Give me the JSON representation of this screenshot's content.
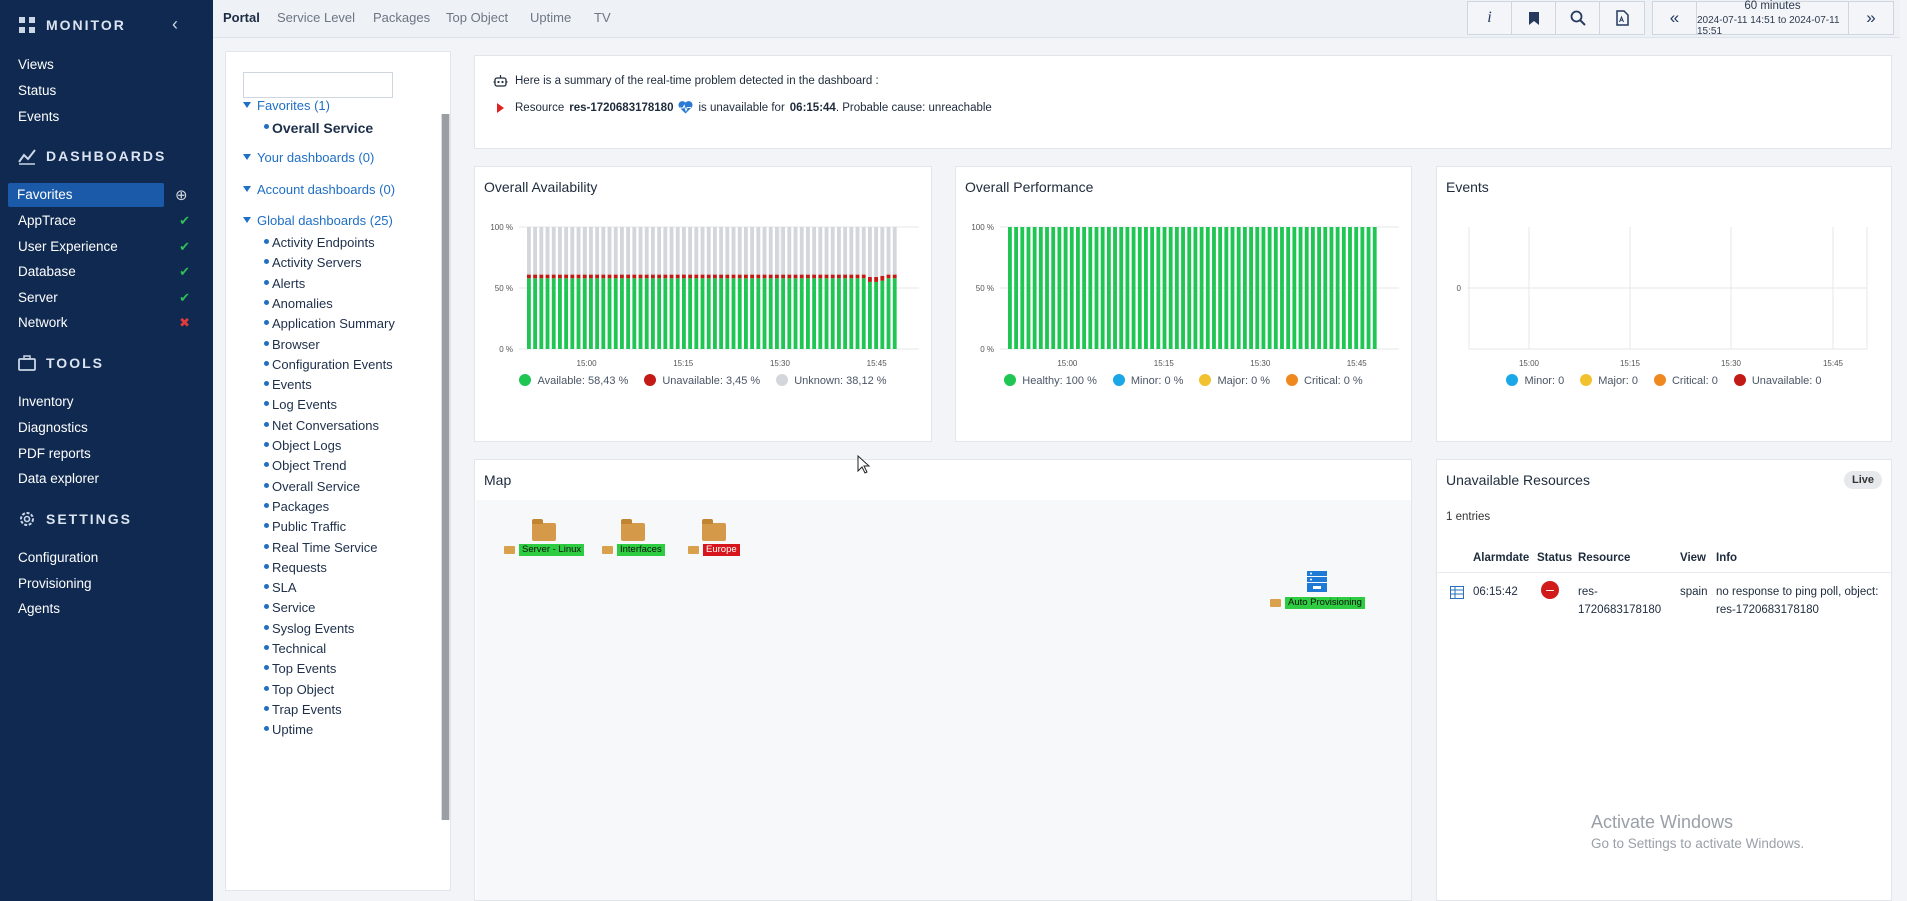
{
  "sidebar": {
    "monitor_title": "MONITOR",
    "monitor_items": [
      "Views",
      "Status",
      "Events"
    ],
    "dashboards_title": "DASHBOARDS",
    "dashboard_items": [
      {
        "label": "Favorites",
        "mark": "plus"
      },
      {
        "label": "AppTrace",
        "mark": "ok"
      },
      {
        "label": "User Experience",
        "mark": "ok"
      },
      {
        "label": "Database",
        "mark": "ok"
      },
      {
        "label": "Server",
        "mark": "ok"
      },
      {
        "label": "Network",
        "mark": "bad"
      }
    ],
    "tools_title": "TOOLS",
    "tools_items": [
      "Inventory",
      "Diagnostics",
      "PDF reports",
      "Data explorer"
    ],
    "settings_title": "SETTINGS",
    "settings_items": [
      "Configuration",
      "Provisioning",
      "Agents"
    ]
  },
  "topbar": {
    "tabs": [
      "Portal",
      "Service Level",
      "Packages",
      "Top Object",
      "Uptime",
      "TV"
    ],
    "active_tab": "Portal",
    "info_label": "i",
    "time_duration": "60 minutes",
    "time_range": "2024-07-11 14:51 to 2024-07-11 15:51"
  },
  "tree": {
    "search_placeholder": "",
    "groups": [
      {
        "label": "Favorites (1)",
        "items": [
          "Overall Service"
        ]
      },
      {
        "label": "Your dashboards (0)",
        "items": []
      },
      {
        "label": "Account dashboards (0)",
        "items": []
      },
      {
        "label": "Global dashboards (25)",
        "items": [
          "Activity Endpoints",
          "Activity Servers",
          "Alerts",
          "Anomalies",
          "Application Summary",
          "Browser",
          "Configuration Events",
          "Events",
          "Log Events",
          "Net Conversations",
          "Object Logs",
          "Object Trend",
          "Overall Service",
          "Packages",
          "Public Traffic",
          "Real Time Service",
          "Requests",
          "SLA",
          "Service",
          "Syslog Events",
          "Technical",
          "Top Events",
          "Top Object",
          "Trap Events",
          "Uptime"
        ]
      }
    ]
  },
  "summary": {
    "intro": "Here is a summary of the real-time problem detected in the dashboard :",
    "resource_prefix": "Resource",
    "resource": "res-1720683178180",
    "middle": "is unavailable for",
    "duration": "06:15:44",
    "cause": ". Probable cause: unreachable"
  },
  "availability": {
    "title": "Overall Availability",
    "legend": [
      "Available: 58,43 %",
      "Unavailable: 3,45 %",
      "Unknown: 38,12 %"
    ]
  },
  "performance": {
    "title": "Overall Performance",
    "legend": [
      "Healthy: 100 %",
      "Minor: 0 %",
      "Major: 0 %",
      "Critical: 0 %"
    ]
  },
  "events": {
    "title": "Events",
    "legend": [
      "Minor: 0",
      "Major: 0",
      "Critical: 0",
      "Unavailable: 0"
    ]
  },
  "map": {
    "title": "Map",
    "nodes": [
      {
        "label": "Server - Linux",
        "state": "green"
      },
      {
        "label": "Interfaces",
        "state": "green"
      },
      {
        "label": "Europe",
        "state": "red"
      },
      {
        "label": "Auto Provisioning",
        "state": "green"
      }
    ]
  },
  "unavailable": {
    "title": "Unavailable Resources",
    "live_badge": "Live",
    "entries": "1 entries",
    "columns": [
      "Alarmdate",
      "Status",
      "Resource",
      "View",
      "Info"
    ],
    "rows": [
      {
        "alarmdate": "06:15:42",
        "status": "–",
        "resource_line1": "res-",
        "resource_line2": "1720683178180",
        "view": "spain",
        "info_line1": "no response to ping poll, object:",
        "info_line2": "res-1720683178180"
      }
    ]
  },
  "watermark": {
    "line1": "Activate Windows",
    "line2": "Go to Settings to activate Windows."
  },
  "colors": {
    "sidebar": "#0f2950",
    "active": "#1b5aa8",
    "available": "#1fc653",
    "unavailable": "#c41a16",
    "unknown": "#d3d6da",
    "minor": "#1aa7e8",
    "major": "#f2c12e",
    "critical": "#f0891d",
    "ok": "#2fbf55",
    "bad": "#e03a3a"
  },
  "chart_data": [
    {
      "type": "bar",
      "title": "Overall Availability",
      "stacked": true,
      "x_tick_labels": [
        "15:00",
        "15:15",
        "15:30",
        "15:45"
      ],
      "y_tick_labels": [
        "100 %",
        "50 %",
        "0 %"
      ],
      "ylim": [
        0,
        100
      ],
      "bar_count": 60,
      "series": [
        {
          "name": "Available",
          "values_note": "mostly 58",
          "values": [
            58,
            58,
            58,
            58,
            58,
            58,
            58,
            58,
            58,
            58,
            58,
            58,
            58,
            58,
            58,
            58,
            58,
            58,
            58,
            58,
            58,
            58,
            58,
            58,
            58,
            58,
            58,
            58,
            58,
            58,
            58,
            58,
            58,
            58,
            58,
            58,
            58,
            58,
            58,
            58,
            58,
            58,
            58,
            58,
            58,
            58,
            58,
            58,
            58,
            58,
            58,
            58,
            58,
            58,
            58,
            55,
            55,
            56,
            58,
            58
          ]
        },
        {
          "name": "Unavailable",
          "values": [
            3,
            3,
            3,
            3,
            3,
            3,
            3,
            3,
            3,
            3,
            3,
            3,
            3,
            3,
            3,
            3,
            3,
            3,
            3,
            3,
            3,
            3,
            3,
            3,
            3,
            3,
            3,
            3,
            3,
            3,
            3,
            3,
            3,
            3,
            3,
            3,
            3,
            3,
            3,
            3,
            3,
            3,
            3,
            3,
            3,
            3,
            3,
            3,
            3,
            3,
            3,
            3,
            3,
            3,
            3,
            4,
            4,
            4,
            3,
            3
          ]
        },
        {
          "name": "Unknown",
          "values": [
            39,
            39,
            39,
            39,
            39,
            39,
            39,
            39,
            39,
            39,
            39,
            39,
            39,
            39,
            39,
            39,
            39,
            39,
            39,
            39,
            39,
            39,
            39,
            39,
            39,
            39,
            39,
            39,
            39,
            39,
            39,
            39,
            39,
            39,
            39,
            39,
            39,
            39,
            39,
            39,
            39,
            39,
            39,
            39,
            39,
            39,
            39,
            39,
            39,
            39,
            39,
            39,
            39,
            39,
            39,
            41,
            41,
            40,
            39,
            39
          ]
        }
      ]
    },
    {
      "type": "bar",
      "title": "Overall Performance",
      "stacked": true,
      "x_tick_labels": [
        "15:00",
        "15:15",
        "15:30",
        "15:45"
      ],
      "y_tick_labels": [
        "100 %",
        "50 %",
        "0 %"
      ],
      "ylim": [
        0,
        100
      ],
      "bar_count": 60,
      "series": [
        {
          "name": "Healthy",
          "values": [
            100,
            100,
            100,
            100,
            100,
            100,
            100,
            100,
            100,
            100,
            100,
            100,
            100,
            100,
            100,
            100,
            100,
            100,
            100,
            100,
            100,
            100,
            100,
            100,
            100,
            100,
            100,
            100,
            100,
            100,
            100,
            100,
            100,
            100,
            100,
            100,
            100,
            100,
            100,
            100,
            100,
            100,
            100,
            100,
            100,
            100,
            100,
            100,
            100,
            100,
            100,
            100,
            100,
            100,
            100,
            100,
            100,
            100,
            100,
            100
          ]
        }
      ]
    },
    {
      "type": "bar",
      "title": "Events",
      "x_tick_labels": [
        "15:00",
        "15:15",
        "15:30",
        "15:45"
      ],
      "y_tick_labels": [
        "0"
      ],
      "series": []
    }
  ]
}
